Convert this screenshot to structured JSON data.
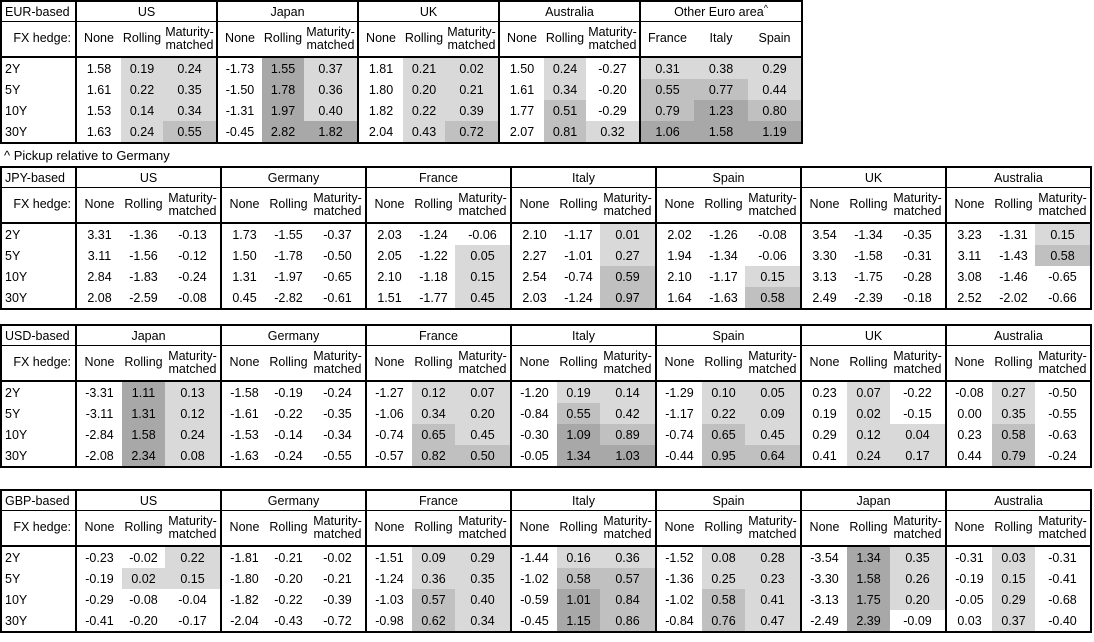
{
  "footnote": "^ Pickup relative to Germany",
  "fx_hedge_label": "FX hedge:",
  "tenors": [
    "2Y",
    "5Y",
    "10Y",
    "30Y"
  ],
  "hedge_types": [
    "None",
    "Rolling",
    "Maturity-matched"
  ],
  "shade_colors": {
    "light": "#d9d9d9",
    "medium": "#c0c0c0",
    "dark": "#a8a8a8"
  },
  "shade_thresholds": {
    "light_min": 0,
    "medium_min": 0.5,
    "dark_min": 1.0
  },
  "tables": [
    {
      "base": "EUR-based",
      "groups": [
        {
          "name": "US",
          "rows": [
            [
              "1.58",
              "0.19",
              "0.24"
            ],
            [
              "1.61",
              "0.22",
              "0.35"
            ],
            [
              "1.53",
              "0.14",
              "0.34"
            ],
            [
              "1.63",
              "0.24",
              "0.55"
            ]
          ]
        },
        {
          "name": "Japan",
          "rows": [
            [
              "-1.73",
              "1.55",
              "0.37"
            ],
            [
              "-1.50",
              "1.78",
              "0.36"
            ],
            [
              "-1.31",
              "1.97",
              "0.40"
            ],
            [
              "-0.45",
              "2.82",
              "1.82"
            ]
          ]
        },
        {
          "name": "UK",
          "rows": [
            [
              "1.81",
              "0.21",
              "0.02"
            ],
            [
              "1.80",
              "0.20",
              "0.21"
            ],
            [
              "1.82",
              "0.22",
              "0.39"
            ],
            [
              "2.04",
              "0.43",
              "0.72"
            ]
          ]
        },
        {
          "name": "Australia",
          "rows": [
            [
              "1.50",
              "0.24",
              "-0.27"
            ],
            [
              "1.61",
              "0.34",
              "-0.20"
            ],
            [
              "1.77",
              "0.51",
              "-0.29"
            ],
            [
              "2.07",
              "0.81",
              "0.32"
            ]
          ]
        },
        {
          "name": "Other Euro area",
          "superscript": "^",
          "columns": [
            "France",
            "Italy",
            "Spain"
          ],
          "shade_from_col": 0,
          "rows": [
            [
              "0.31",
              "0.38",
              "0.29"
            ],
            [
              "0.55",
              "0.77",
              "0.44"
            ],
            [
              "0.79",
              "1.23",
              "0.80"
            ],
            [
              "1.06",
              "1.58",
              "1.19"
            ]
          ]
        }
      ]
    },
    {
      "base": "JPY-based",
      "groups": [
        {
          "name": "US",
          "rows": [
            [
              "3.31",
              "-1.36",
              "-0.13"
            ],
            [
              "3.11",
              "-1.56",
              "-0.12"
            ],
            [
              "2.84",
              "-1.83",
              "-0.24"
            ],
            [
              "2.08",
              "-2.59",
              "-0.08"
            ]
          ]
        },
        {
          "name": "Germany",
          "rows": [
            [
              "1.73",
              "-1.55",
              "-0.37"
            ],
            [
              "1.50",
              "-1.78",
              "-0.50"
            ],
            [
              "1.31",
              "-1.97",
              "-0.65"
            ],
            [
              "0.45",
              "-2.82",
              "-0.61"
            ]
          ]
        },
        {
          "name": "France",
          "rows": [
            [
              "2.03",
              "-1.24",
              "-0.06"
            ],
            [
              "2.05",
              "-1.22",
              "0.05"
            ],
            [
              "2.10",
              "-1.18",
              "0.15"
            ],
            [
              "1.51",
              "-1.77",
              "0.45"
            ]
          ]
        },
        {
          "name": "Italy",
          "rows": [
            [
              "2.10",
              "-1.17",
              "0.01"
            ],
            [
              "2.27",
              "-1.01",
              "0.27"
            ],
            [
              "2.54",
              "-0.74",
              "0.59"
            ],
            [
              "2.03",
              "-1.24",
              "0.97"
            ]
          ]
        },
        {
          "name": "Spain",
          "rows": [
            [
              "2.02",
              "-1.26",
              "-0.08"
            ],
            [
              "1.94",
              "-1.34",
              "-0.06"
            ],
            [
              "2.10",
              "-1.17",
              "0.15"
            ],
            [
              "1.64",
              "-1.63",
              "0.58"
            ]
          ]
        },
        {
          "name": "UK",
          "rows": [
            [
              "3.54",
              "-1.34",
              "-0.35"
            ],
            [
              "3.30",
              "-1.58",
              "-0.31"
            ],
            [
              "3.13",
              "-1.75",
              "-0.28"
            ],
            [
              "2.49",
              "-2.39",
              "-0.18"
            ]
          ]
        },
        {
          "name": "Australia",
          "rows": [
            [
              "3.23",
              "-1.31",
              "0.15"
            ],
            [
              "3.11",
              "-1.43",
              "0.58"
            ],
            [
              "3.08",
              "-1.46",
              "-0.65"
            ],
            [
              "2.52",
              "-2.02",
              "-0.66"
            ]
          ]
        }
      ]
    },
    {
      "base": "USD-based",
      "groups": [
        {
          "name": "Japan",
          "rows": [
            [
              "-3.31",
              "1.11",
              "0.13"
            ],
            [
              "-3.11",
              "1.31",
              "0.12"
            ],
            [
              "-2.84",
              "1.58",
              "0.24"
            ],
            [
              "-2.08",
              "2.34",
              "0.08"
            ]
          ]
        },
        {
          "name": "Germany",
          "rows": [
            [
              "-1.58",
              "-0.19",
              "-0.24"
            ],
            [
              "-1.61",
              "-0.22",
              "-0.35"
            ],
            [
              "-1.53",
              "-0.14",
              "-0.34"
            ],
            [
              "-1.63",
              "-0.24",
              "-0.55"
            ]
          ]
        },
        {
          "name": "France",
          "rows": [
            [
              "-1.27",
              "0.12",
              "0.07"
            ],
            [
              "-1.06",
              "0.34",
              "0.20"
            ],
            [
              "-0.74",
              "0.65",
              "0.45"
            ],
            [
              "-0.57",
              "0.82",
              "0.50"
            ]
          ]
        },
        {
          "name": "Italy",
          "rows": [
            [
              "-1.20",
              "0.19",
              "0.14"
            ],
            [
              "-0.84",
              "0.55",
              "0.42"
            ],
            [
              "-0.30",
              "1.09",
              "0.89"
            ],
            [
              "-0.05",
              "1.34",
              "1.03"
            ]
          ]
        },
        {
          "name": "Spain",
          "rows": [
            [
              "-1.29",
              "0.10",
              "0.05"
            ],
            [
              "-1.17",
              "0.22",
              "0.09"
            ],
            [
              "-0.74",
              "0.65",
              "0.45"
            ],
            [
              "-0.44",
              "0.95",
              "0.64"
            ]
          ]
        },
        {
          "name": "UK",
          "rows": [
            [
              "0.23",
              "0.07",
              "-0.22"
            ],
            [
              "0.19",
              "0.02",
              "-0.15"
            ],
            [
              "0.29",
              "0.12",
              "0.04"
            ],
            [
              "0.41",
              "0.24",
              "0.17"
            ]
          ]
        },
        {
          "name": "Australia",
          "rows": [
            [
              "-0.08",
              "0.27",
              "-0.50"
            ],
            [
              "0.00",
              "0.35",
              "-0.55"
            ],
            [
              "0.23",
              "0.58",
              "-0.63"
            ],
            [
              "0.44",
              "0.79",
              "-0.24"
            ]
          ]
        }
      ]
    },
    {
      "base": "GBP-based",
      "groups": [
        {
          "name": "US",
          "rows": [
            [
              "-0.23",
              "-0.02",
              "0.22"
            ],
            [
              "-0.19",
              "0.02",
              "0.15"
            ],
            [
              "-0.29",
              "-0.08",
              "-0.04"
            ],
            [
              "-0.41",
              "-0.20",
              "-0.17"
            ]
          ]
        },
        {
          "name": "Germany",
          "rows": [
            [
              "-1.81",
              "-0.21",
              "-0.02"
            ],
            [
              "-1.80",
              "-0.20",
              "-0.21"
            ],
            [
              "-1.82",
              "-0.22",
              "-0.39"
            ],
            [
              "-2.04",
              "-0.43",
              "-0.72"
            ]
          ]
        },
        {
          "name": "France",
          "rows": [
            [
              "-1.51",
              "0.09",
              "0.29"
            ],
            [
              "-1.24",
              "0.36",
              "0.35"
            ],
            [
              "-1.03",
              "0.57",
              "0.40"
            ],
            [
              "-0.98",
              "0.62",
              "0.34"
            ]
          ]
        },
        {
          "name": "Italy",
          "rows": [
            [
              "-1.44",
              "0.16",
              "0.36"
            ],
            [
              "-1.02",
              "0.58",
              "0.57"
            ],
            [
              "-0.59",
              "1.01",
              "0.84"
            ],
            [
              "-0.45",
              "1.15",
              "0.86"
            ]
          ]
        },
        {
          "name": "Spain",
          "rows": [
            [
              "-1.52",
              "0.08",
              "0.28"
            ],
            [
              "-1.36",
              "0.25",
              "0.23"
            ],
            [
              "-1.02",
              "0.58",
              "0.41"
            ],
            [
              "-0.84",
              "0.76",
              "0.47"
            ]
          ]
        },
        {
          "name": "Japan",
          "rows": [
            [
              "-3.54",
              "1.34",
              "0.35"
            ],
            [
              "-3.30",
              "1.58",
              "0.26"
            ],
            [
              "-3.13",
              "1.75",
              "0.20"
            ],
            [
              "-2.49",
              "2.39",
              "-0.09"
            ]
          ]
        },
        {
          "name": "Australia",
          "rows": [
            [
              "-0.31",
              "0.03",
              "-0.31"
            ],
            [
              "-0.19",
              "0.15",
              "-0.41"
            ],
            [
              "-0.05",
              "0.29",
              "-0.68"
            ],
            [
              "0.03",
              "0.37",
              "-0.40"
            ]
          ]
        }
      ]
    }
  ]
}
